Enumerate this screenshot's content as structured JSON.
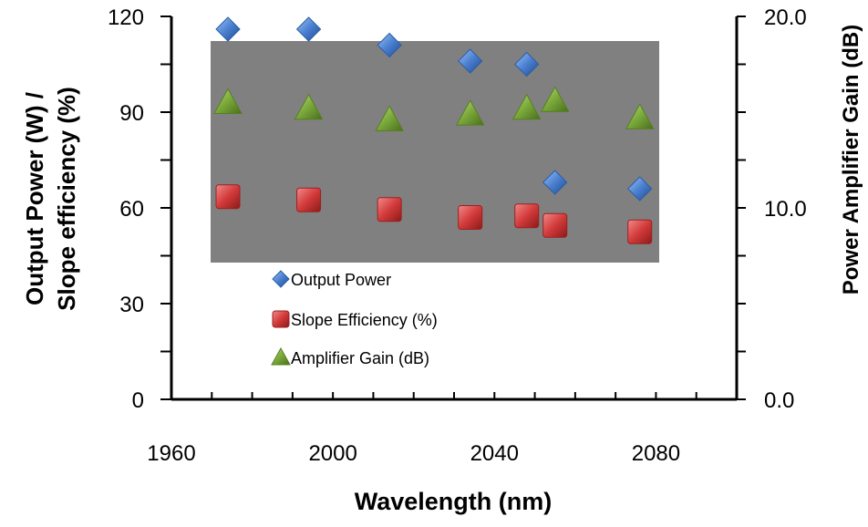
{
  "chart_data": {
    "type": "scatter",
    "xlabel": "Wavelength (nm)",
    "ylabel_left_line1": "Output Power (W) /",
    "ylabel_left_line2": "Slope efficiency (%)",
    "ylabel_right": "Power Amplifier Gain (dB)",
    "xlim": [
      1960,
      2100
    ],
    "x_ticks": [
      "1960",
      "2000",
      "2040",
      "2080"
    ],
    "x_tick_values": [
      1960,
      2000,
      2040,
      2080
    ],
    "ylim_left": [
      0,
      120
    ],
    "y_left_ticks": [
      "0",
      "30",
      "60",
      "90",
      "120"
    ],
    "y_left_tick_values": [
      0,
      30,
      60,
      90,
      120
    ],
    "ylim_right": [
      0,
      20
    ],
    "y_right_ticks": [
      "0.0",
      "10.0",
      "20.0"
    ],
    "y_right_tick_values": [
      0,
      10,
      20
    ],
    "plot_background": "#808080",
    "legend_placement": "inside plot, lower-left",
    "series": [
      {
        "name": "Output Power",
        "marker": "diamond",
        "color": "#4a7fd0",
        "axis": "left",
        "x": [
          1974,
          1994,
          2014,
          2034,
          2048,
          2055,
          2076
        ],
        "y": [
          116,
          116,
          111,
          106,
          105,
          68,
          66
        ]
      },
      {
        "name": "Slope Efficiency (%)",
        "marker": "square",
        "color": "#d23a3a",
        "axis": "left",
        "x": [
          1974,
          1994,
          2014,
          2034,
          2048,
          2055,
          2076
        ],
        "y": [
          63.5,
          62.5,
          59.5,
          57,
          57.5,
          54.5,
          52.5
        ]
      },
      {
        "name": "Amplifier Gain (dB)",
        "marker": "triangle",
        "color": "#7aa83a",
        "axis": "right",
        "x": [
          1974,
          1994,
          2014,
          2034,
          2048,
          2055,
          2076
        ],
        "y": [
          15.5,
          15.2,
          14.6,
          14.9,
          15.2,
          15.6,
          14.7
        ]
      }
    ]
  }
}
